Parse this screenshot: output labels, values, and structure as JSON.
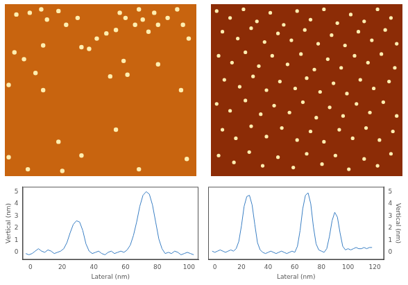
{
  "chart_data": [
    {
      "type": "scatter",
      "marker": "circle",
      "color": "#ffeeb0",
      "grid": false,
      "tick_labels": false,
      "xlim": [
        0,
        100
      ],
      "ylim": [
        0,
        100
      ],
      "x": [
        6,
        13,
        19,
        22,
        28,
        32,
        38,
        40,
        44,
        48,
        53,
        58,
        60,
        63,
        68,
        70,
        72,
        75,
        78,
        80,
        85,
        90,
        93,
        96,
        5,
        10,
        20,
        16,
        62,
        55,
        64,
        2,
        20,
        58,
        2,
        28,
        40,
        12,
        30,
        70,
        95,
        92,
        80
      ],
      "values": [
        94,
        95,
        97,
        91,
        96,
        88,
        92,
        75,
        74,
        80,
        83,
        85,
        95,
        92,
        88,
        97,
        91,
        84,
        95,
        88,
        92,
        97,
        88,
        80,
        72,
        68,
        76,
        60,
        67,
        58,
        59,
        53,
        50,
        27,
        11,
        20,
        12,
        4,
        3,
        4,
        10,
        50,
        65
      ]
    },
    {
      "type": "scatter",
      "marker": "circle",
      "color": "#ffeeb0",
      "grid": false,
      "tick_labels": false,
      "xlim": [
        0,
        100
      ],
      "ylim": [
        0,
        100
      ],
      "x": [
        3,
        10,
        17,
        24,
        31,
        38,
        45,
        52,
        59,
        66,
        73,
        80,
        87,
        94,
        6,
        14,
        21,
        28,
        35,
        42,
        49,
        56,
        63,
        70,
        77,
        84,
        91,
        97,
        4,
        11,
        18,
        25,
        32,
        40,
        47,
        54,
        61,
        68,
        75,
        82,
        89,
        96,
        7,
        15,
        22,
        29,
        36,
        44,
        50,
        57,
        64,
        71,
        78,
        85,
        93,
        3,
        10,
        18,
        26,
        33,
        41,
        48,
        55,
        62,
        69,
        76,
        83,
        90,
        97,
        6,
        13,
        21,
        29,
        37,
        45,
        52,
        59,
        67,
        74,
        81,
        88,
        95,
        4,
        12,
        20,
        27,
        35,
        43,
        50,
        58,
        65,
        72,
        80,
        87,
        94
      ],
      "values": [
        96,
        92,
        97,
        90,
        95,
        88,
        96,
        91,
        97,
        89,
        94,
        90,
        97,
        92,
        84,
        80,
        86,
        78,
        83,
        79,
        85,
        77,
        82,
        76,
        84,
        79,
        85,
        77,
        70,
        66,
        72,
        64,
        70,
        65,
        71,
        62,
        68,
        63,
        70,
        66,
        71,
        63,
        56,
        52,
        58,
        50,
        55,
        51,
        57,
        49,
        54,
        48,
        56,
        51,
        55,
        42,
        38,
        44,
        36,
        41,
        37,
        43,
        34,
        40,
        35,
        42,
        37,
        43,
        35,
        27,
        22,
        29,
        23,
        28,
        21,
        26,
        20,
        27,
        22,
        28,
        21,
        26,
        12,
        8,
        14,
        6,
        11,
        5,
        13,
        7,
        12,
        4,
        10,
        6,
        13
      ]
    },
    {
      "type": "line",
      "color": "#3a7fc4",
      "grid": false,
      "x_label": "Lateral (nm)",
      "y_label": "Vertical (nm)",
      "xlim": [
        -5,
        106
      ],
      "xticks": [
        0,
        20,
        40,
        60,
        80,
        100
      ],
      "ylim": [
        -0.6,
        5.4
      ],
      "yticks": [
        0,
        1,
        2,
        3,
        4,
        5
      ],
      "x": [
        -3,
        -1,
        1,
        3,
        5,
        7,
        9,
        11,
        13,
        15,
        17,
        19,
        21,
        23,
        25,
        27,
        29,
        31,
        33,
        35,
        37,
        39,
        41,
        43,
        45,
        47,
        49,
        51,
        53,
        55,
        57,
        59,
        61,
        63,
        65,
        67,
        69,
        71,
        73,
        75,
        77,
        79,
        81,
        83,
        85,
        87,
        89,
        91,
        93,
        95,
        97,
        99,
        101,
        103
      ],
      "values": [
        -0.1,
        -0.2,
        -0.1,
        0.1,
        0.3,
        0.1,
        0.0,
        0.2,
        0.1,
        -0.1,
        0.0,
        0.1,
        0.3,
        0.8,
        1.6,
        2.3,
        2.6,
        2.5,
        1.8,
        0.7,
        0.1,
        -0.1,
        0.0,
        0.1,
        -0.1,
        -0.2,
        0.0,
        0.1,
        -0.1,
        0.0,
        0.1,
        0.0,
        0.2,
        0.6,
        1.4,
        2.5,
        3.8,
        4.7,
        5.0,
        4.8,
        3.9,
        2.5,
        1.1,
        0.3,
        -0.1,
        0.0,
        -0.1,
        0.1,
        0.0,
        -0.2,
        -0.1,
        0.0,
        -0.1,
        -0.2
      ]
    },
    {
      "type": "line",
      "color": "#3a7fc4",
      "grid": false,
      "x_label": "Lateral (nm)",
      "y_label": "Vertical (nm)",
      "xlim": [
        -5,
        127
      ],
      "xticks": [
        0,
        20,
        40,
        60,
        80,
        100,
        120
      ],
      "ylim": [
        -0.6,
        5.4
      ],
      "yticks": [
        0,
        1,
        2,
        3,
        4,
        5
      ],
      "x": [
        -2,
        0,
        2,
        4,
        6,
        8,
        10,
        12,
        14,
        16,
        18,
        20,
        22,
        24,
        26,
        28,
        30,
        32,
        34,
        36,
        38,
        40,
        42,
        44,
        46,
        48,
        50,
        52,
        54,
        56,
        58,
        60,
        62,
        64,
        66,
        68,
        70,
        72,
        74,
        76,
        78,
        80,
        82,
        84,
        86,
        88,
        90,
        92,
        94,
        96,
        98,
        100,
        102,
        104,
        106,
        108,
        110,
        112,
        114,
        116,
        118
      ],
      "values": [
        0.1,
        0.0,
        0.1,
        0.2,
        0.1,
        0.0,
        0.1,
        0.2,
        0.1,
        0.3,
        0.9,
        2.2,
        3.8,
        4.6,
        4.7,
        3.9,
        2.3,
        0.8,
        0.2,
        0.0,
        -0.1,
        0.0,
        0.1,
        0.0,
        -0.1,
        0.0,
        0.1,
        0.0,
        -0.1,
        0.0,
        0.1,
        0.0,
        0.5,
        1.8,
        3.6,
        4.7,
        4.9,
        4.0,
        2.1,
        0.7,
        0.2,
        0.1,
        0.0,
        0.3,
        1.3,
        2.6,
        3.3,
        2.9,
        1.6,
        0.5,
        0.2,
        0.3,
        0.2,
        0.3,
        0.4,
        0.3,
        0.3,
        0.4,
        0.3,
        0.4,
        0.4
      ]
    }
  ]
}
